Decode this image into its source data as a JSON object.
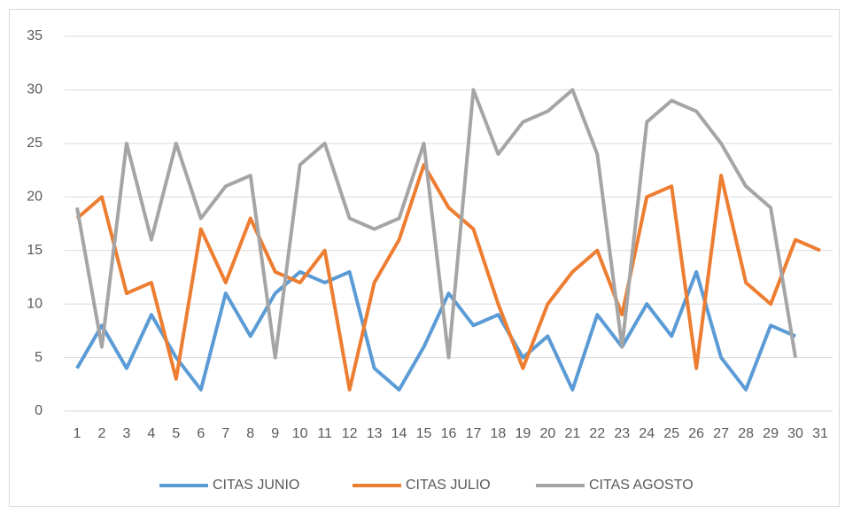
{
  "chart_data": {
    "type": "line",
    "categories": [
      1,
      2,
      3,
      4,
      5,
      6,
      7,
      8,
      9,
      10,
      11,
      12,
      13,
      14,
      15,
      16,
      17,
      18,
      19,
      20,
      21,
      22,
      23,
      24,
      25,
      26,
      27,
      28,
      29,
      30,
      31
    ],
    "series": [
      {
        "name": "CITAS JUNIO",
        "color": "#5b9bd5",
        "values": [
          4,
          8,
          4,
          9,
          5,
          2,
          11,
          7,
          11,
          13,
          12,
          13,
          4,
          2,
          6,
          11,
          8,
          9,
          5,
          7,
          2,
          9,
          6,
          10,
          7,
          13,
          5,
          2,
          8,
          7,
          null
        ]
      },
      {
        "name": "CITAS JULIO",
        "color": "#ed7d31",
        "values": [
          18,
          20,
          11,
          12,
          3,
          17,
          12,
          18,
          13,
          12,
          15,
          2,
          12,
          16,
          23,
          19,
          17,
          10,
          4,
          10,
          13,
          15,
          9,
          20,
          21,
          4,
          22,
          12,
          10,
          16,
          15
        ]
      },
      {
        "name": "CITAS AGOSTO",
        "color": "#a5a5a5",
        "values": [
          19,
          6,
          25,
          16,
          25,
          18,
          21,
          22,
          5,
          23,
          25,
          18,
          17,
          18,
          25,
          5,
          30,
          24,
          27,
          28,
          30,
          24,
          6,
          27,
          29,
          28,
          25,
          21,
          19,
          5,
          null
        ]
      }
    ],
    "ylim": [
      0,
      35
    ],
    "yticks": [
      0,
      5,
      10,
      15,
      20,
      25,
      30,
      35
    ],
    "grid": true,
    "legend": "bottom"
  }
}
